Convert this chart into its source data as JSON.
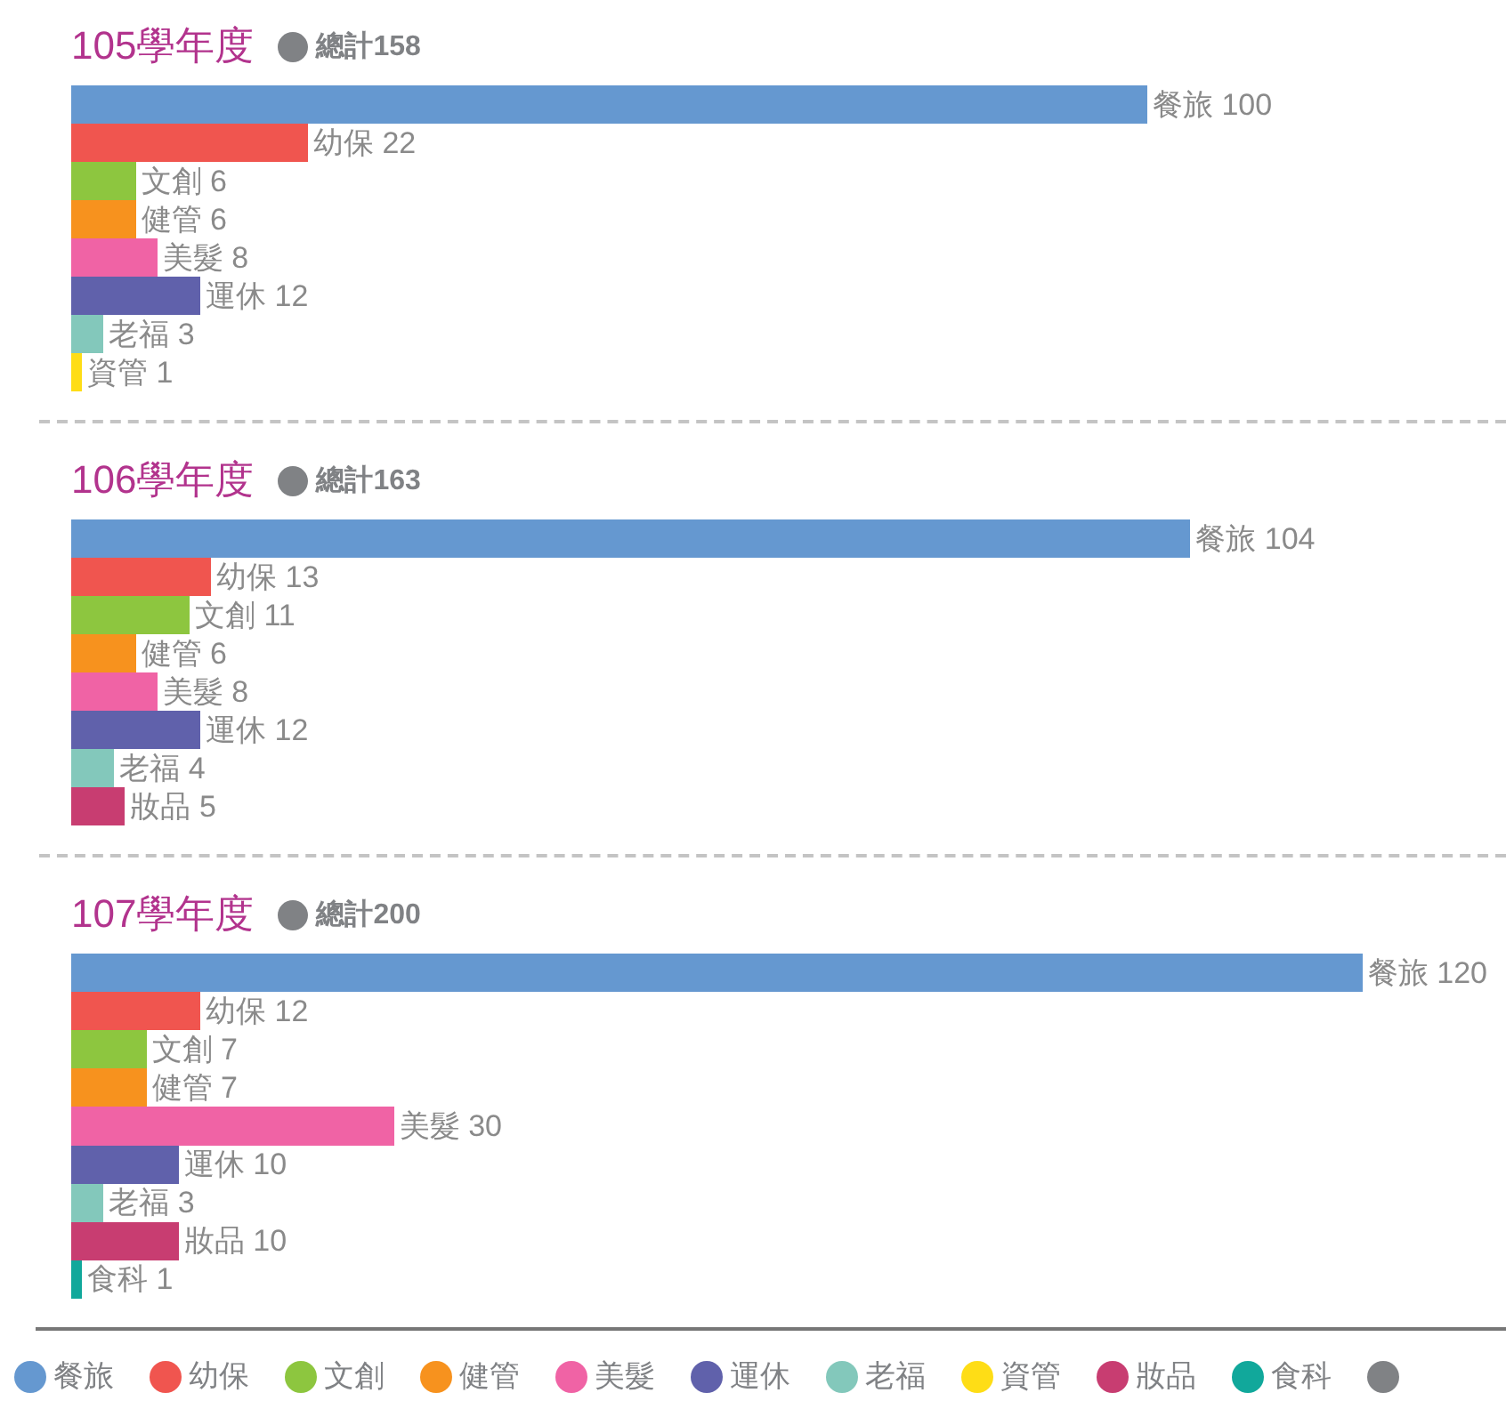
{
  "chart_data": [
    {
      "type": "bar",
      "orientation": "horizontal",
      "title": "105學年度",
      "subtitle": "總計158",
      "categories": [
        null,
        null,
        null,
        null,
        null,
        null,
        null,
        null
      ],
      "values": [
        100,
        22,
        6,
        6,
        8,
        12,
        3,
        1
      ],
      "colors": [
        "#6598d0",
        "#f0554f",
        "#8dc63f",
        "#f7921e",
        "#f063a5",
        "#6061ab",
        "#83c8bb",
        "#fedd16"
      ],
      "value_labels": [
        "餐旅 100",
        "幼保 22",
        "文創 6",
        "健管 6",
        "美髮 8",
        "運休 12",
        "老福 3",
        "資管 1"
      ]
    },
    {
      "type": "bar",
      "orientation": "horizontal",
      "title": "106學年度",
      "subtitle": "總計163",
      "categories": [
        null,
        null,
        null,
        null,
        null,
        null,
        null,
        null
      ],
      "values": [
        104,
        13,
        11,
        6,
        8,
        12,
        4,
        5
      ],
      "colors": [
        "#6598d0",
        "#f0554f",
        "#8dc63f",
        "#f7921e",
        "#f063a5",
        "#6061ab",
        "#83c8bb",
        "#c83d71"
      ],
      "value_labels": [
        "餐旅 104",
        "幼保 13",
        "文創 11",
        "健管 6",
        "美髮 8",
        "運休 12",
        "老福 4",
        "妝品 5"
      ]
    },
    {
      "type": "bar",
      "orientation": "horizontal",
      "title": "107學年度",
      "subtitle": "總計200",
      "categories": [
        null,
        null,
        null,
        null,
        null,
        null,
        null,
        null,
        null
      ],
      "values": [
        120,
        12,
        7,
        7,
        30,
        10,
        3,
        10,
        1
      ],
      "colors": [
        "#6598d0",
        "#f0554f",
        "#8dc63f",
        "#f7921e",
        "#f063a5",
        "#6061ab",
        "#83c8bb",
        "#c83d71",
        "#11a89b"
      ],
      "value_labels": [
        "餐旅 120",
        "幼保 12",
        "文創 7",
        "健管 7",
        "美髮 30",
        "運休 10",
        "老福 3",
        "妝品 10",
        "食科 1"
      ]
    },
    {
      "type": "other",
      "categories": [
        "餐旅",
        "幼保",
        "文創",
        "健管",
        "美髮",
        "運休",
        "老福",
        "資管",
        "妝品",
        "食科",
        null
      ],
      "colors": [
        "#6598d0",
        "#f0554f",
        "#8dc63f",
        "#f7921e",
        "#f063a5",
        "#6061ab",
        "#83c8bb",
        "#fedd16",
        "#c83d71",
        "#11a89b",
        "#808285"
      ]
    }
  ]
}
